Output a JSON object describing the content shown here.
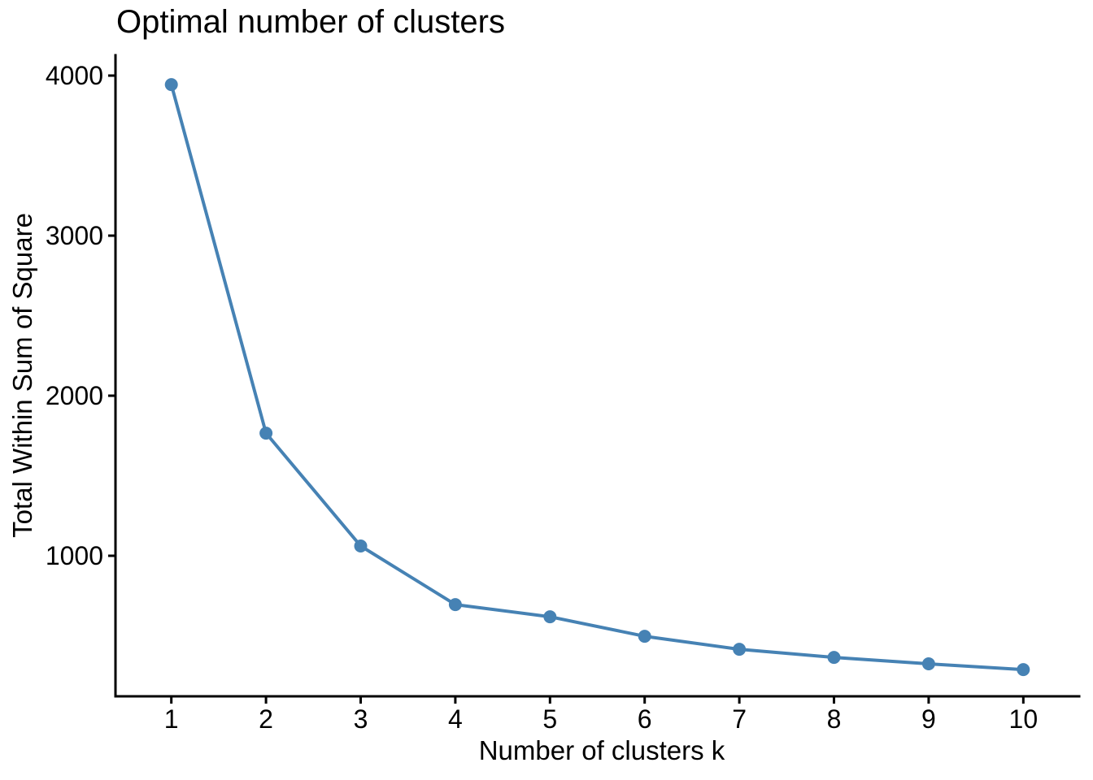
{
  "page": {
    "background": "#ffffff"
  },
  "chart_data": {
    "type": "line",
    "title": "Optimal number of clusters",
    "xlabel": "Number of clusters k",
    "ylabel": "Total Within Sum of Square",
    "x": [
      1,
      2,
      3,
      4,
      5,
      6,
      7,
      8,
      9,
      10
    ],
    "y": [
      3944,
      1766,
      1061,
      695,
      619,
      497,
      416,
      365,
      325,
      289
    ],
    "x_ticks": [
      1,
      2,
      3,
      4,
      5,
      6,
      7,
      8,
      9,
      10
    ],
    "y_ticks": [
      1000,
      2000,
      3000,
      4000
    ],
    "xlim": [
      0.41,
      10.59
    ],
    "ylim": [
      122,
      4127
    ],
    "grid": false,
    "legend": "none",
    "marker": "circle",
    "colors": {
      "line": "#4682B4",
      "point": "#4682B4",
      "axis": "#000000",
      "text": "#000000"
    }
  }
}
